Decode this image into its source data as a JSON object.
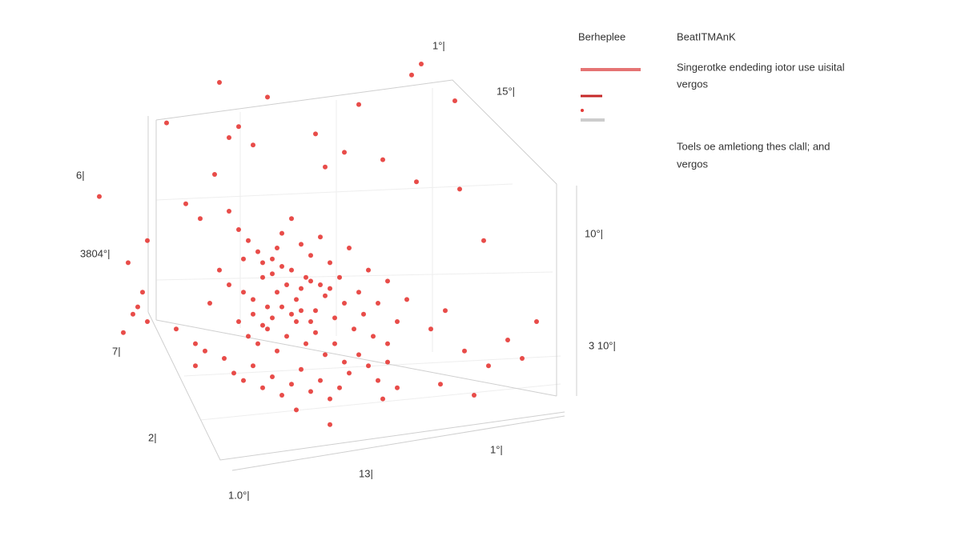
{
  "chart_data": {
    "type": "scatter",
    "x": [
      29,
      39,
      71,
      69,
      58,
      78,
      18,
      33,
      31,
      36,
      55,
      51,
      49,
      63,
      70,
      79,
      84,
      14,
      10,
      4,
      13,
      11,
      14,
      9,
      12,
      26,
      24,
      22,
      25,
      28,
      31,
      33,
      35,
      37,
      40,
      42,
      44,
      46,
      48,
      50,
      52,
      54,
      56,
      58,
      60,
      62,
      64,
      66,
      68,
      73,
      76,
      80,
      85,
      89,
      92,
      95,
      29,
      31,
      34,
      36,
      38,
      39,
      41,
      43,
      45,
      47,
      49,
      51,
      53,
      55,
      57,
      59,
      61,
      64,
      33,
      35,
      37,
      39,
      41,
      43,
      45,
      47,
      49,
      51,
      53,
      55,
      38,
      40,
      42,
      44,
      46,
      48,
      50,
      52,
      36,
      38,
      40,
      42,
      44,
      46,
      48,
      30,
      32,
      34,
      36,
      38,
      40,
      42,
      44,
      46,
      48,
      50,
      52,
      54,
      56,
      58,
      60,
      62,
      64,
      66,
      27,
      45,
      52,
      63,
      75,
      82,
      20,
      24,
      34,
      41
    ],
    "y": [
      95,
      91,
      100,
      97,
      89,
      90,
      84,
      83,
      80,
      78,
      76,
      72,
      81,
      74,
      68,
      66,
      52,
      52,
      46,
      64,
      38,
      32,
      30,
      27,
      34,
      22,
      18,
      62,
      58,
      70,
      60,
      55,
      52,
      49,
      47,
      54,
      58,
      51,
      48,
      53,
      46,
      42,
      50,
      38,
      44,
      35,
      41,
      30,
      36,
      28,
      33,
      22,
      18,
      25,
      20,
      30,
      44,
      40,
      38,
      36,
      42,
      34,
      38,
      40,
      36,
      42,
      33,
      37,
      31,
      35,
      28,
      32,
      26,
      24,
      30,
      26,
      24,
      28,
      22,
      26,
      30,
      24,
      27,
      21,
      24,
      19,
      46,
      43,
      45,
      44,
      39,
      41,
      40,
      39,
      32,
      29,
      31,
      34,
      32,
      33,
      30,
      20,
      16,
      14,
      18,
      12,
      15,
      10,
      13,
      17,
      11,
      14,
      9,
      12,
      16,
      21,
      18,
      14,
      19,
      12,
      35,
      6,
      2,
      9,
      13,
      10,
      28,
      24,
      47,
      50
    ],
    "color": "#e53935",
    "xlim": [
      0,
      100
    ],
    "ylim": [
      0,
      100
    ],
    "tick_labels": [
      "6|",
      "3804°|",
      "7|",
      "2|",
      "1.0°|",
      "13|",
      "1°|",
      "3 10°|",
      "10°|",
      "15°|",
      "1°|"
    ],
    "legend": {
      "headings": [
        "Berheplee",
        "BeatITMAnK"
      ],
      "swatches": [
        "#e57373",
        "#c62828",
        "#e53935",
        "#cccccc"
      ],
      "entries": [
        [
          "Singerotke endeding iotor use uisital",
          "vergos"
        ],
        [
          "Toels oe amletiong thes clall; and",
          "vergos"
        ]
      ]
    }
  }
}
